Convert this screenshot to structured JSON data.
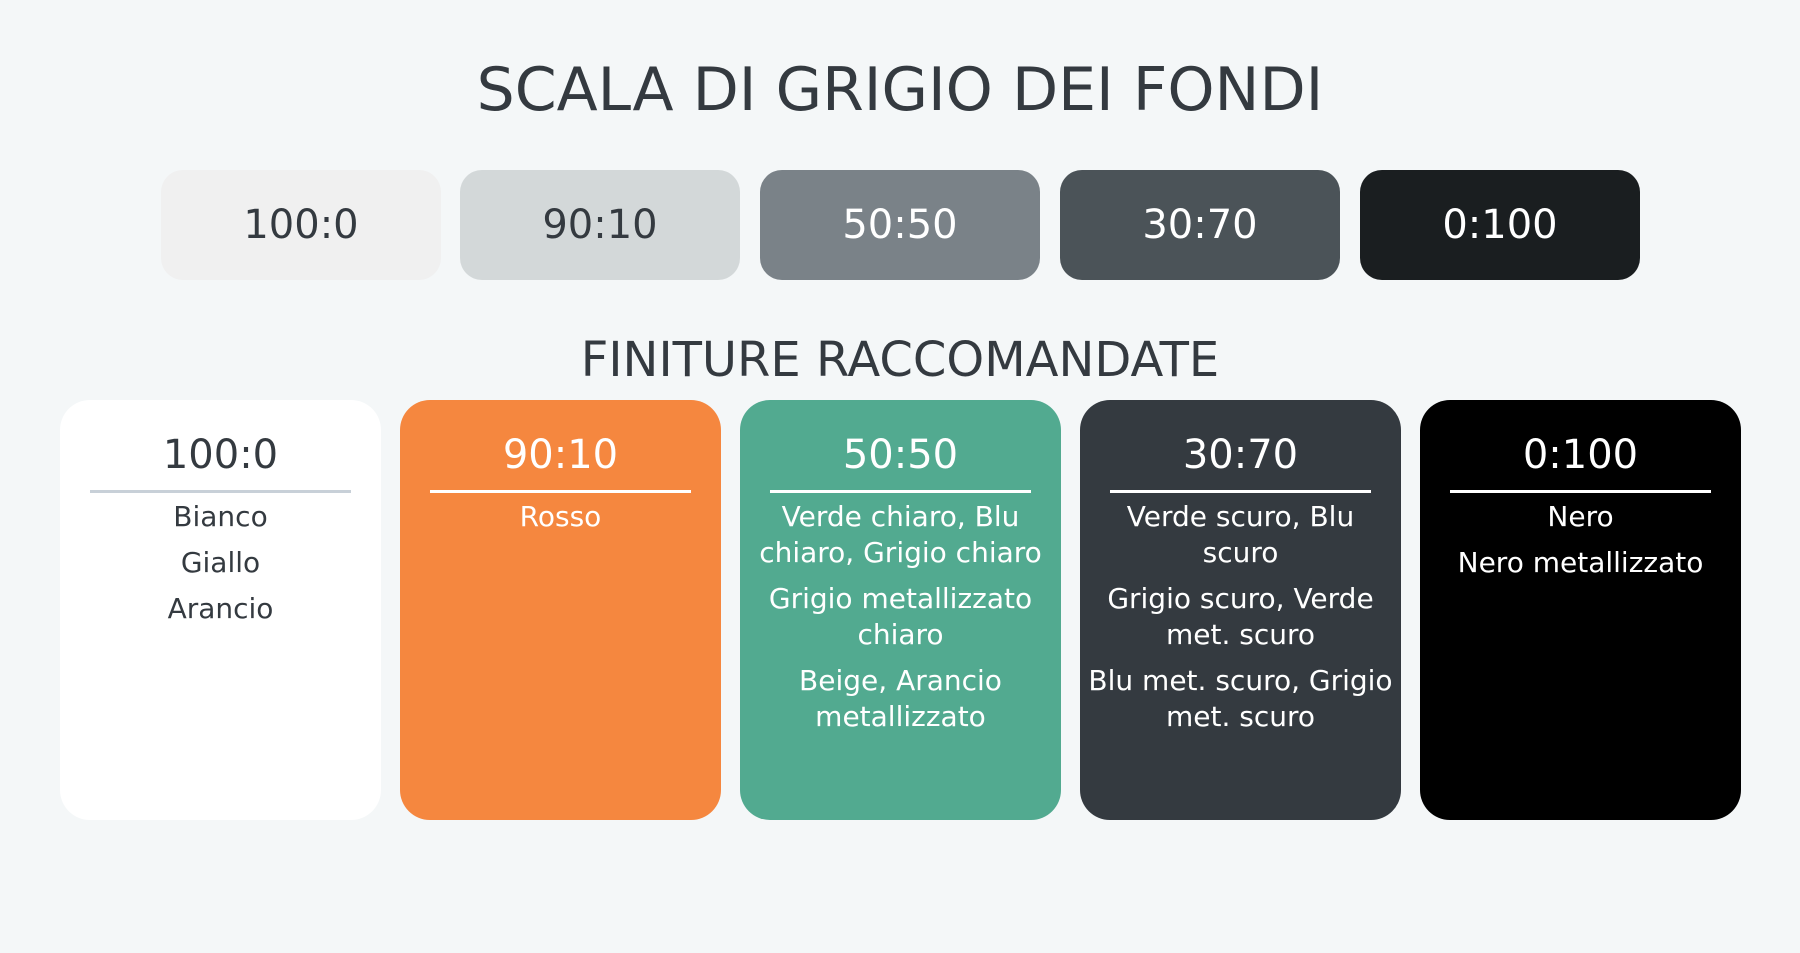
{
  "title": "SCALA DI GRIGIO DEI FONDI",
  "subtitle": "FINITURE RACCOMANDATE",
  "swatches": [
    {
      "label": "100:0",
      "color": "#f0f0f0",
      "text_color": "#343a40"
    },
    {
      "label": "90:10",
      "color": "#d3d8d9",
      "text_color": "#343a40"
    },
    {
      "label": "50:50",
      "color": "#7a8288",
      "text_color": "#ffffff"
    },
    {
      "label": "30:70",
      "color": "#4b5358",
      "text_color": "#ffffff"
    },
    {
      "label": "0:100",
      "color": "#1a1e20",
      "text_color": "#ffffff"
    }
  ],
  "cards": [
    {
      "label": "100:0",
      "color": "#ffffff",
      "text_color": "#343a40",
      "divider_color": "#c8d0d8",
      "items": [
        "Bianco",
        "Giallo",
        "Arancio"
      ]
    },
    {
      "label": "90:10",
      "color": "#f5873f",
      "text_color": "#ffffff",
      "divider_color": "#ffffff",
      "items": [
        "Rosso"
      ]
    },
    {
      "label": "50:50",
      "color": "#52aa90",
      "text_color": "#ffffff",
      "divider_color": "#ffffff",
      "items": [
        "Verde chiaro, Blu chiaro, Grigio chiaro",
        "Grigio metallizzato chiaro",
        "Beige, Arancio metallizzato"
      ]
    },
    {
      "label": "30:70",
      "color": "#343a40",
      "text_color": "#ffffff",
      "divider_color": "#ffffff",
      "items": [
        "Verde scuro, Blu scuro",
        "Grigio scuro, Verde met. scuro",
        "Blu met. scuro, Grigio met. scuro"
      ]
    },
    {
      "label": "0:100",
      "color": "#000000",
      "text_color": "#ffffff",
      "divider_color": "#ffffff",
      "items": [
        "Nero",
        "Nero metallizzato"
      ]
    }
  ]
}
